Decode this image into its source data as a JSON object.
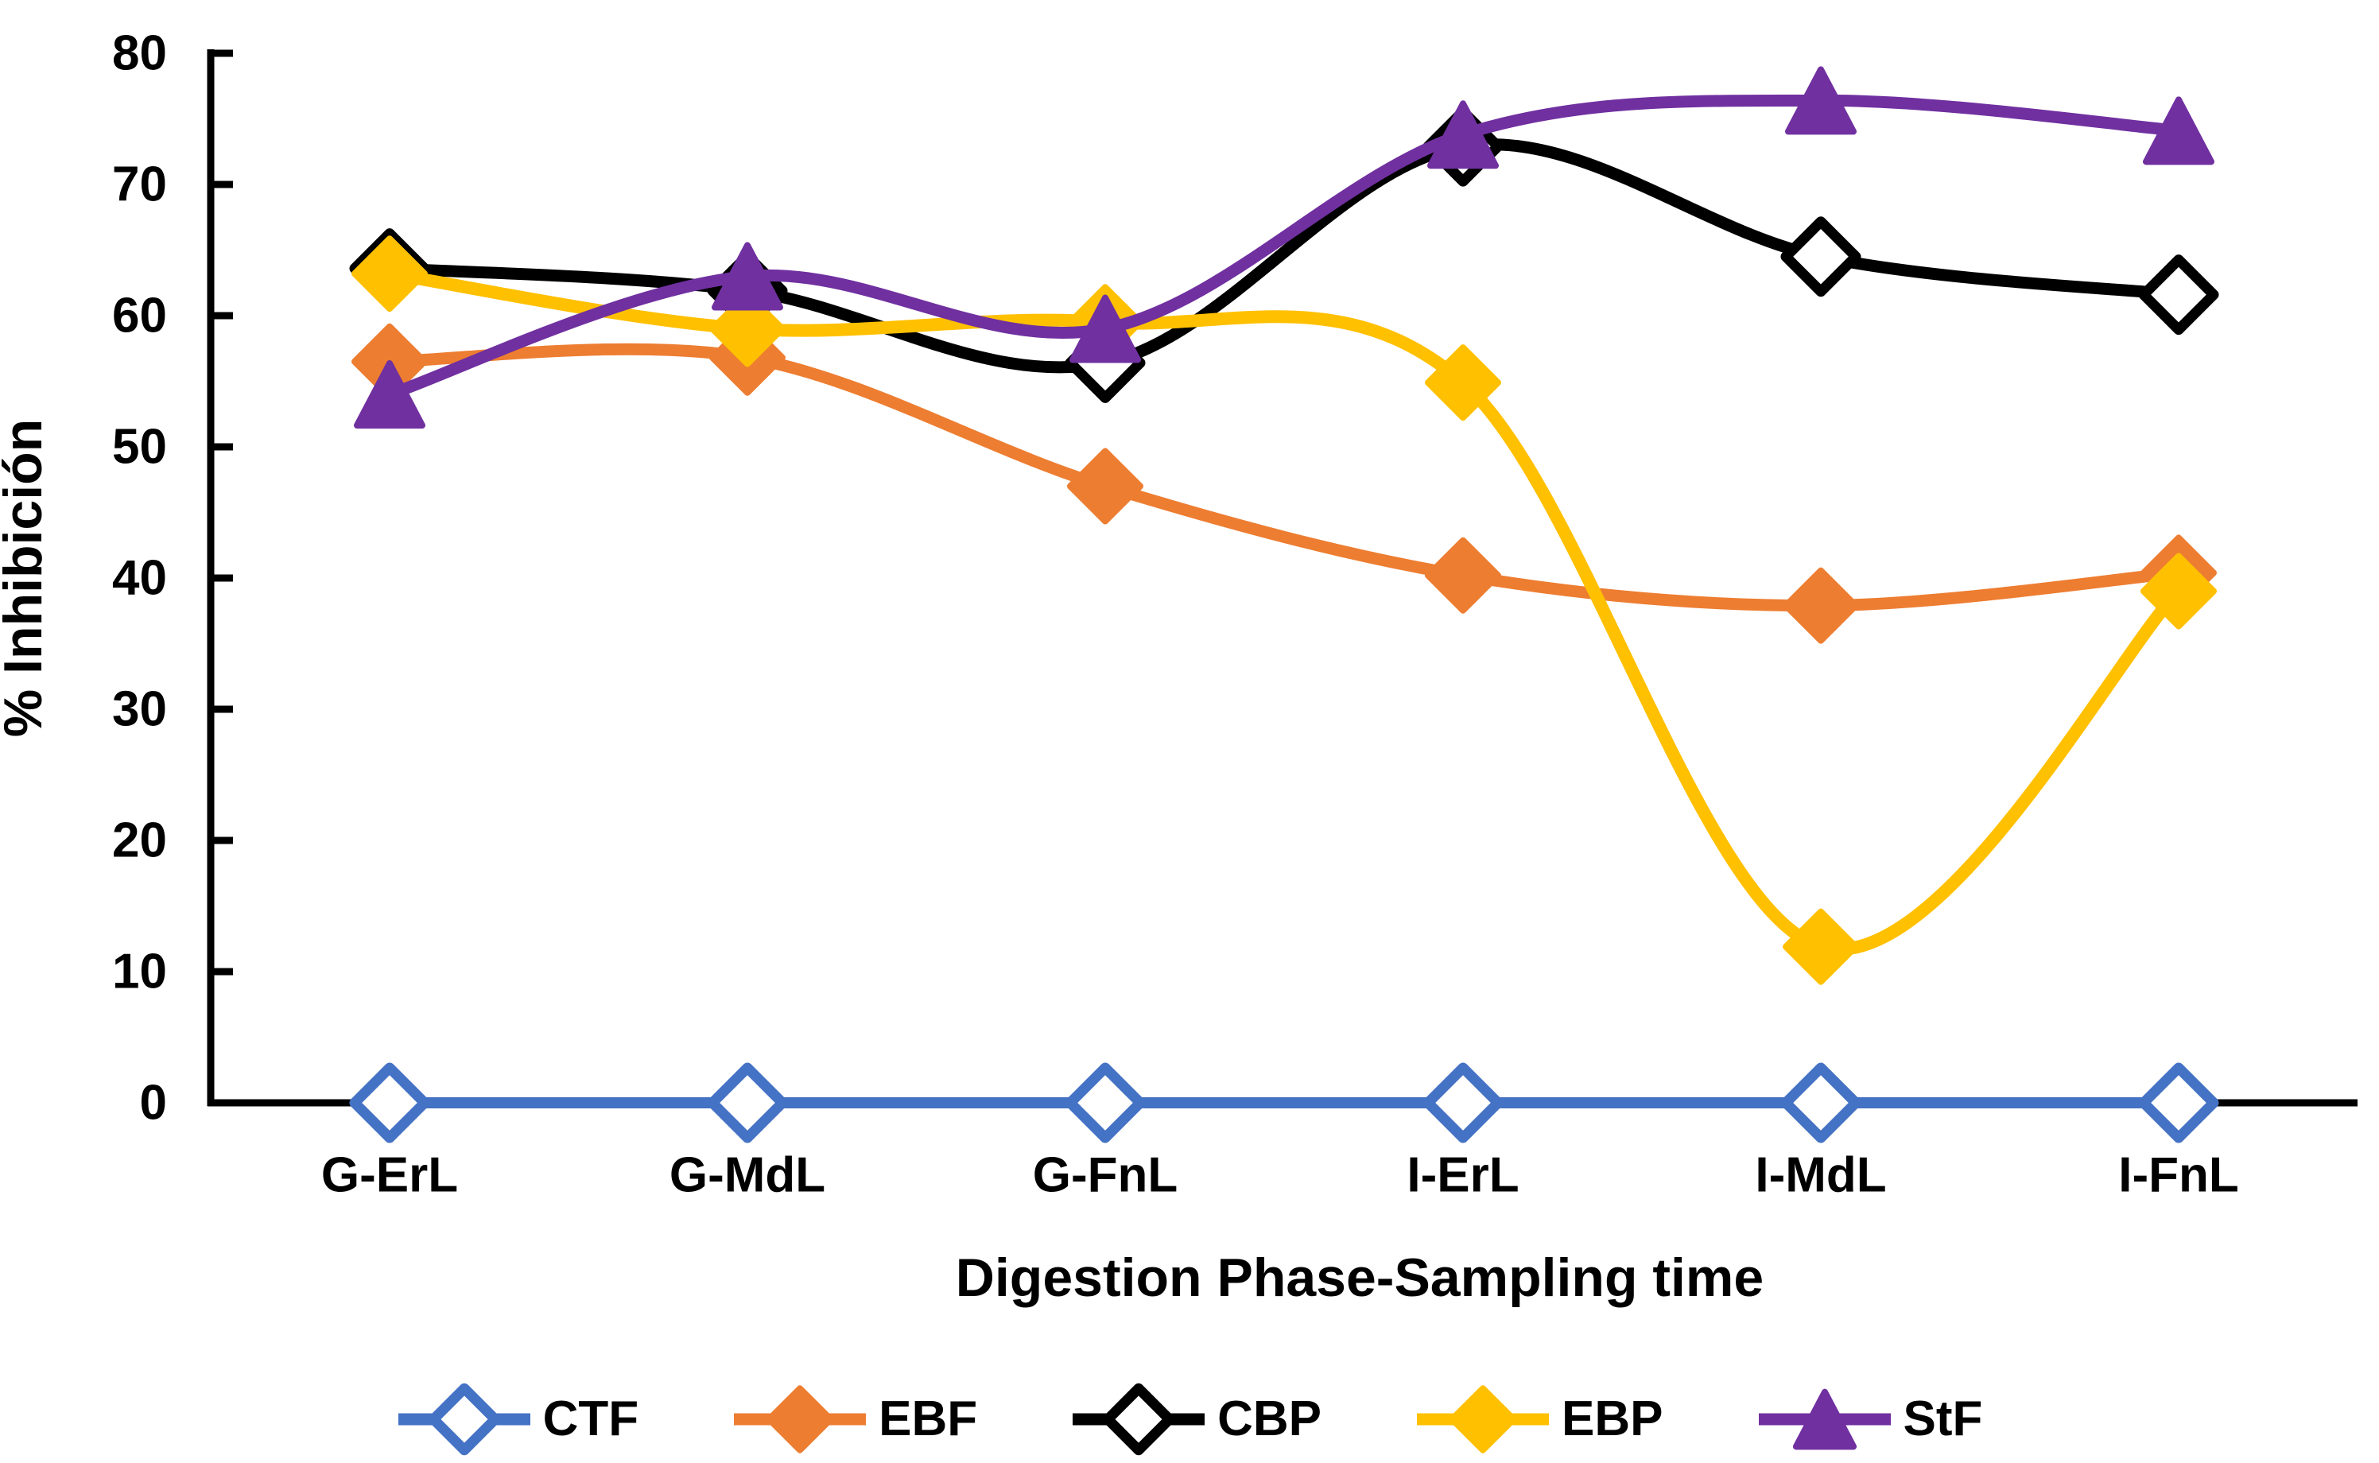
{
  "chart_data": {
    "type": "line",
    "title": "",
    "xlabel": "Digestion Phase-Sampling time",
    "ylabel": "% Inhibición",
    "categories": [
      "G-ErL",
      "G-MdL",
      "G-FnL",
      "I-ErL",
      "I-MdL",
      "I-FnL"
    ],
    "ylim": [
      0,
      80
    ],
    "ytick_step": 10,
    "ytick_labels": [
      "0",
      "10",
      "20",
      "30",
      "40",
      "50",
      "60",
      "70",
      "80"
    ],
    "grid": false,
    "smooth_lines": true,
    "legend_position": "bottom",
    "axis_color": "#000000",
    "series": [
      {
        "name": "CTF",
        "color": "#4472C4",
        "marker": "diamond-open",
        "values": [
          0,
          0,
          0,
          0,
          0,
          0
        ]
      },
      {
        "name": "EBF",
        "color": "#ED7D31",
        "marker": "diamond",
        "values": [
          56.5,
          56.8,
          47.0,
          40.2,
          37.9,
          40.4
        ]
      },
      {
        "name": "CBP",
        "color": "#000000",
        "marker": "diamond-open",
        "values": [
          63.6,
          61.9,
          56.4,
          72.9,
          64.5,
          61.6
        ]
      },
      {
        "name": "EBP",
        "color": "#FFC000",
        "marker": "diamond",
        "values": [
          63.2,
          59.0,
          59.5,
          54.9,
          11.9,
          39.0
        ]
      },
      {
        "name": "StF",
        "color": "#7030A0",
        "marker": "triangle",
        "values": [
          54.0,
          63.0,
          59.0,
          73.8,
          76.4,
          74.1
        ]
      }
    ]
  }
}
